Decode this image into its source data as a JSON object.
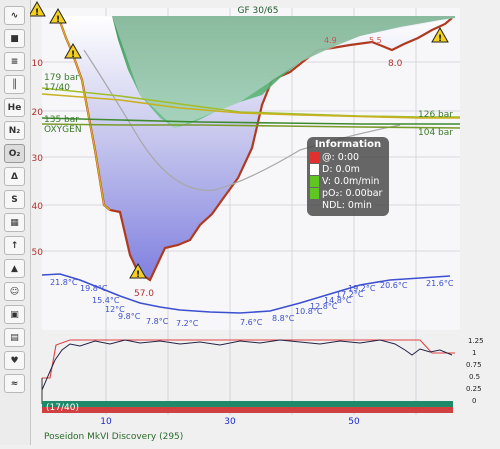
{
  "toolbar": {
    "buttons": [
      {
        "icon": "profile-icon",
        "glyph": "∿",
        "name": "tb-profile"
      },
      {
        "icon": "ceiling-icon",
        "glyph": "■",
        "name": "tb-ceiling"
      },
      {
        "icon": "calculated-ceiling-icon",
        "glyph": "≡",
        "name": "tb-calc-ceiling"
      },
      {
        "icon": "tissue-ceiling-icon",
        "glyph": "║",
        "name": "tb-tissues"
      },
      {
        "icon": "helium-icon",
        "glyph": "He",
        "name": "tb-he"
      },
      {
        "icon": "nitrogen-icon",
        "glyph": "N₂",
        "name": "tb-n2"
      },
      {
        "icon": "oxygen-icon",
        "glyph": "O₂",
        "name": "tb-o2"
      },
      {
        "icon": "mod-icon",
        "glyph": "Δ",
        "name": "tb-mod"
      },
      {
        "icon": "ead-icon",
        "glyph": "S",
        "name": "tb-ead"
      },
      {
        "icon": "heatmap-icon",
        "glyph": "▦",
        "name": "tb-heatmap"
      },
      {
        "icon": "rate-icon",
        "glyph": "↑",
        "name": "tb-rate"
      },
      {
        "icon": "mod-text-icon",
        "glyph": "▲",
        "name": "tb-mod-text"
      },
      {
        "icon": "diver-icon",
        "glyph": "☺",
        "name": "tb-diver"
      },
      {
        "icon": "ead-text-icon",
        "glyph": "▣",
        "name": "tb-ead-text"
      },
      {
        "icon": "sac-icon",
        "glyph": "▤",
        "name": "tb-sac"
      },
      {
        "icon": "heart-rate-icon",
        "glyph": "♥",
        "name": "tb-heart"
      },
      {
        "icon": "partial-pressure-icon",
        "glyph": "≈",
        "name": "tb-pp"
      }
    ]
  },
  "profile": {
    "gf_label": "GF 30/65",
    "depth_ticks": [
      "10",
      "20",
      "30",
      "40",
      "50"
    ],
    "time_ticks": [
      "10",
      "30",
      "50"
    ],
    "max_depth_label": "57.0",
    "ceiling_labels": [
      "5.5",
      "8.0",
      "4.9"
    ],
    "tank_labels": [
      {
        "text": "179 bar",
        "color": "#3b7a2b"
      },
      {
        "text": "17/40",
        "color": "#3b7a2b"
      },
      {
        "text": "135 bar",
        "color": "#3b7a2b"
      },
      {
        "text": "OXYGEN",
        "color": "#3b7a2b"
      },
      {
        "text": "126 bar",
        "color": "#3b7a2b"
      },
      {
        "text": "104 bar",
        "color": "#3b7a2b"
      }
    ],
    "temperatures": [
      "21.8°C",
      "19.8°C",
      "15.4°C",
      "12°C",
      "9.8°C",
      "7.8°C",
      "7.2°C",
      "7.6°C",
      "8.8°C",
      "10.8°C",
      "12.8°C",
      "14.8°C",
      "17.2°C",
      "19.2°C",
      "20.6°C",
      "21.6°C"
    ],
    "pp_axis_ticks": [
      "1.25",
      "1",
      "0.75",
      "0.5",
      "0.25",
      "0"
    ],
    "gas_bar_label": "(17/40)",
    "computer": "Poseidon MkVI Discovery (295)"
  },
  "info_box": {
    "title": "Information",
    "time": "@: 0:00",
    "depth": "D: 0.0m",
    "velocity": "V: 0.0m/min",
    "po2": "pO₂: 0.00bar",
    "ndl": "NDL: 0min"
  },
  "colors": {
    "depth_fill": "#9a9ae8",
    "ceiling_green": "#2f9a4d",
    "tank_line": "#8ab42a",
    "temperature": "#3b4fd0",
    "po2_line": "#202040",
    "setpoint": "#e04040",
    "gas_green": "#1f8a6a",
    "gas_red": "#d04040",
    "axis_text": "#1a2ad0"
  }
}
